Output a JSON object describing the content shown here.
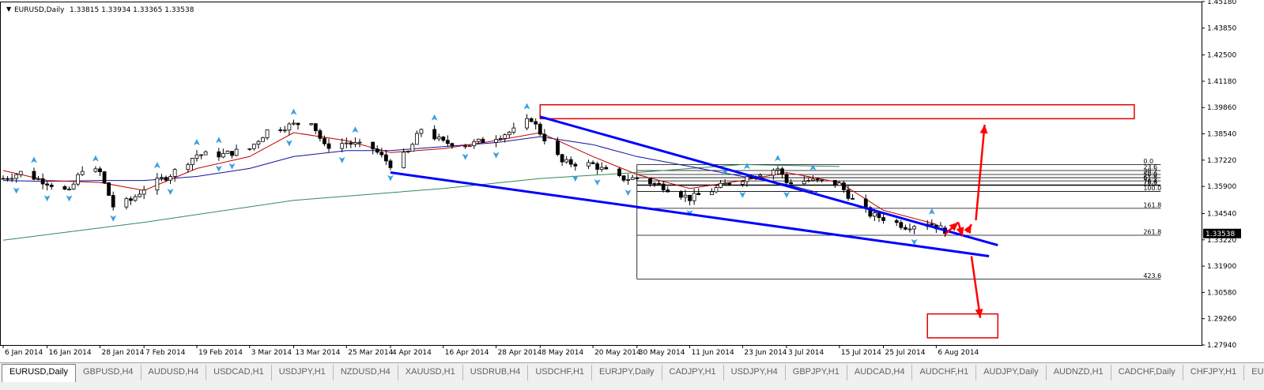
{
  "chart_header": {
    "symbol_label": "EURUSD,Daily",
    "ohlc": "1.33815 1.33934 1.33365 1.33538",
    "menu_glyph": "▼"
  },
  "price_axis": {
    "labels": [
      "1.45180",
      "1.43850",
      "1.42500",
      "1.41180",
      "1.39860",
      "1.38540",
      "1.37220",
      "1.35900",
      "1.34540",
      "1.33220",
      "1.31900",
      "1.30580",
      "1.29260",
      "1.27940"
    ],
    "current_price": "1.33538"
  },
  "time_axis": {
    "labels": [
      "6 Jan 2014",
      "16 Jan 2014",
      "28 Jan 2014",
      "7 Feb 2014",
      "19 Feb 2014",
      "3 Mar 2014",
      "13 Mar 2014",
      "25 Mar 2014",
      "4 Apr 2014",
      "16 Apr 2014",
      "28 Apr 2014",
      "8 May 2014",
      "20 May 2014",
      "30 May 2014",
      "11 Jun 2014",
      "23 Jun 2014",
      "3 Jul 2014",
      "15 Jul 2014",
      "25 Jul 2014",
      "6 Aug 2014"
    ]
  },
  "fibo_labels": [
    "0.0",
    "23.6",
    "38.2",
    "50.0",
    "61.8",
    "76.4",
    "78.6",
    "100.0",
    "161.8",
    "261.8",
    "423.6"
  ],
  "chart_data": {
    "type": "candlestick",
    "symbol": "EURUSD",
    "timeframe": "Daily",
    "last_bar_ohlc": {
      "open": 1.33815,
      "high": 1.33934,
      "low": 1.33365,
      "close": 1.33538
    },
    "ylim": [
      1.2794,
      1.4518
    ],
    "close_path": [
      [
        "2014-01-06",
        1.363
      ],
      [
        "2014-01-10",
        1.366
      ],
      [
        "2014-01-16",
        1.361
      ],
      [
        "2014-01-21",
        1.356
      ],
      [
        "2014-01-24",
        1.368
      ],
      [
        "2014-01-28",
        1.366
      ],
      [
        "2014-01-31",
        1.349
      ],
      [
        "2014-02-04",
        1.352
      ],
      [
        "2014-02-07",
        1.358
      ],
      [
        "2014-02-13",
        1.365
      ],
      [
        "2014-02-19",
        1.375
      ],
      [
        "2014-02-25",
        1.375
      ],
      [
        "2014-03-03",
        1.378
      ],
      [
        "2014-03-07",
        1.387
      ],
      [
        "2014-03-13",
        1.39
      ],
      [
        "2014-03-17",
        1.392
      ],
      [
        "2014-03-20",
        1.379
      ],
      [
        "2014-03-25",
        1.381
      ],
      [
        "2014-03-31",
        1.378
      ],
      [
        "2014-04-04",
        1.37
      ],
      [
        "2014-04-08",
        1.376
      ],
      [
        "2014-04-11",
        1.388
      ],
      [
        "2014-04-16",
        1.381
      ],
      [
        "2014-04-22",
        1.38
      ],
      [
        "2014-04-28",
        1.384
      ],
      [
        "2014-05-02",
        1.387
      ],
      [
        "2014-05-06",
        1.393
      ],
      [
        "2014-05-08",
        1.386
      ],
      [
        "2014-05-13",
        1.371
      ],
      [
        "2014-05-20",
        1.37
      ],
      [
        "2014-05-26",
        1.363
      ],
      [
        "2014-05-30",
        1.363
      ],
      [
        "2014-06-05",
        1.359
      ],
      [
        "2014-06-11",
        1.353
      ],
      [
        "2014-06-16",
        1.357
      ],
      [
        "2014-06-20",
        1.361
      ],
      [
        "2014-06-23",
        1.363
      ],
      [
        "2014-06-27",
        1.366
      ],
      [
        "2014-07-01",
        1.368
      ],
      [
        "2014-07-03",
        1.361
      ],
      [
        "2014-07-08",
        1.362
      ],
      [
        "2014-07-15",
        1.36
      ],
      [
        "2014-07-18",
        1.352
      ],
      [
        "2014-07-22",
        1.345
      ],
      [
        "2014-07-25",
        1.343
      ],
      [
        "2014-07-30",
        1.339
      ],
      [
        "2014-08-04",
        1.341
      ],
      [
        "2014-08-07",
        1.338
      ],
      [
        "2014-08-08",
        1.33538
      ]
    ],
    "ma_fast": [
      [
        "2014-01-06",
        1.367
      ],
      [
        "2014-01-16",
        1.362
      ],
      [
        "2014-01-28",
        1.361
      ],
      [
        "2014-02-07",
        1.357
      ],
      [
        "2014-02-19",
        1.368
      ],
      [
        "2014-03-03",
        1.374
      ],
      [
        "2014-03-13",
        1.386
      ],
      [
        "2014-03-25",
        1.382
      ],
      [
        "2014-04-04",
        1.376
      ],
      [
        "2014-04-16",
        1.378
      ],
      [
        "2014-04-28",
        1.382
      ],
      [
        "2014-05-08",
        1.386
      ],
      [
        "2014-05-20",
        1.374
      ],
      [
        "2014-05-30",
        1.365
      ],
      [
        "2014-06-11",
        1.358
      ],
      [
        "2014-06-23",
        1.362
      ],
      [
        "2014-07-03",
        1.366
      ],
      [
        "2014-07-15",
        1.361
      ],
      [
        "2014-07-25",
        1.347
      ],
      [
        "2014-08-06",
        1.34
      ]
    ],
    "ma_medium": [
      [
        "2014-01-06",
        1.362
      ],
      [
        "2014-01-16",
        1.3615
      ],
      [
        "2014-01-28",
        1.362
      ],
      [
        "2014-02-07",
        1.362
      ],
      [
        "2014-02-19",
        1.364
      ],
      [
        "2014-03-03",
        1.368
      ],
      [
        "2014-03-13",
        1.374
      ],
      [
        "2014-03-25",
        1.377
      ],
      [
        "2014-04-04",
        1.377
      ],
      [
        "2014-04-16",
        1.379
      ],
      [
        "2014-04-28",
        1.381
      ],
      [
        "2014-05-08",
        1.384
      ],
      [
        "2014-05-20",
        1.38
      ],
      [
        "2014-05-30",
        1.374
      ],
      [
        "2014-06-11",
        1.369
      ],
      [
        "2014-06-23",
        1.364
      ],
      [
        "2014-07-03",
        1.36
      ],
      [
        "2014-07-10",
        1.356
      ]
    ],
    "ma_slow": [
      [
        "2014-01-06",
        1.332
      ],
      [
        "2014-02-07",
        1.341
      ],
      [
        "2014-03-13",
        1.352
      ],
      [
        "2014-04-16",
        1.358
      ],
      [
        "2014-05-08",
        1.363
      ],
      [
        "2014-05-30",
        1.366
      ],
      [
        "2014-06-23",
        1.37
      ],
      [
        "2014-07-15",
        1.369
      ]
    ],
    "trendlines": [
      {
        "color": "#0000ff",
        "from": [
          "2014-05-08",
          1.394
        ],
        "to": [
          "2014-08-20",
          1.3295
        ]
      },
      {
        "color": "#0000ff",
        "from": [
          "2014-04-04",
          1.366
        ],
        "to": [
          "2014-08-18",
          1.324
        ]
      }
    ],
    "zones": [
      {
        "color": "#e00000",
        "from": [
          "2014-05-08",
          1.4
        ],
        "to": [
          "2014-09-20",
          1.393
        ]
      },
      {
        "color": "#e00000",
        "from": [
          "2014-08-04",
          1.295
        ],
        "to": [
          "2014-08-20",
          1.283
        ]
      }
    ],
    "arrows": [
      {
        "color": "#ff0000",
        "from": [
          "2014-08-08",
          1.335
        ],
        "to": [
          "2014-08-11",
          1.341
        ]
      },
      {
        "color": "#ff0000",
        "from": [
          "2014-08-11",
          1.341
        ],
        "to": [
          "2014-08-12",
          1.334
        ]
      },
      {
        "color": "#ff0000",
        "from": [
          "2014-08-13",
          1.336
        ],
        "to": [
          "2014-08-14",
          1.34
        ]
      },
      {
        "color": "#ff0000",
        "from": [
          "2014-08-15",
          1.342
        ],
        "to": [
          "2014-08-17",
          1.39
        ]
      },
      {
        "color": "#ff0000",
        "from": [
          "2014-08-14",
          1.324
        ],
        "to": [
          "2014-08-16",
          1.293
        ]
      }
    ],
    "fibo": {
      "from_date": "2014-05-30",
      "to_date": "2014-09-26",
      "levels": [
        {
          "label": "0.0",
          "price": 1.37
        },
        {
          "label": "23.6",
          "price": 1.367
        },
        {
          "label": "38.2",
          "price": 1.365
        },
        {
          "label": "50.0",
          "price": 1.3634
        },
        {
          "label": "61.8",
          "price": 1.3618
        },
        {
          "label": "76.4",
          "price": 1.3598
        },
        {
          "label": "78.6",
          "price": 1.3595
        },
        {
          "label": "100.0",
          "price": 1.3565
        },
        {
          "label": "161.8",
          "price": 1.348
        },
        {
          "label": "261.8",
          "price": 1.3345
        },
        {
          "label": "423.6",
          "price": 1.3125
        }
      ]
    }
  },
  "tabs": [
    {
      "label": "EURUSD,Daily",
      "active": true
    },
    {
      "label": "GBPUSD,H4"
    },
    {
      "label": "AUDUSD,H4"
    },
    {
      "label": "USDCAD,H1"
    },
    {
      "label": "USDJPY,H1"
    },
    {
      "label": "NZDUSD,H4"
    },
    {
      "label": "XAUUSD,H1"
    },
    {
      "label": "USDRUB,H4"
    },
    {
      "label": "USDCHF,H1"
    },
    {
      "label": "EURJPY,Daily"
    },
    {
      "label": "CADJPY,H1"
    },
    {
      "label": "USDJPY,H4"
    },
    {
      "label": "GBPJPY,H1"
    },
    {
      "label": "AUDCAD,H4"
    },
    {
      "label": "AUDCHF,H1"
    },
    {
      "label": "AUDJPY,Daily"
    },
    {
      "label": "AUDNZD,H1"
    },
    {
      "label": "CADCHF,Daily"
    },
    {
      "label": "CHFJPY,H1"
    },
    {
      "label": "EU"
    }
  ],
  "colors": {
    "candle_bull": "#ffffff",
    "candle_bear": "#000000",
    "ma_fast": "#c00000",
    "ma_medium": "#1010a0",
    "ma_slow": "#2e8b57",
    "fractal": "#3aa0e0",
    "trendline": "#0000ff",
    "zone": "#e00000",
    "arrow": "#ff0000"
  }
}
